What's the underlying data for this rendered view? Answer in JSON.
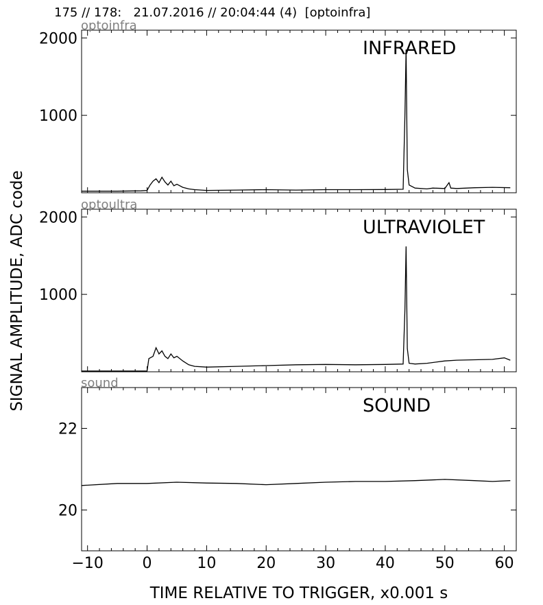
{
  "header": {
    "text": "175 // 178:   21.07.2016 // 20:04:44 (4)  [optoinfra]"
  },
  "ylabel": "SIGNAL AMPLITUDE,  ADC code",
  "xlabel": "TIME RELATIVE TO TRIGGER,   x0.001 s",
  "chart_data": [
    {
      "type": "line",
      "channel": "optoinfra",
      "title": "INFRARED",
      "xlim": [
        -11,
        62
      ],
      "ylim": [
        0,
        2100
      ],
      "yticks": [
        1000,
        2000
      ],
      "xticks": [
        -10,
        0,
        10,
        20,
        30,
        40,
        50,
        60
      ],
      "grid": false,
      "x": [
        -11,
        -5,
        -1,
        0,
        0.5,
        1,
        1.5,
        2,
        2.5,
        3,
        3.5,
        4,
        4.5,
        5,
        6,
        7,
        8,
        10,
        15,
        20,
        25,
        30,
        35,
        40,
        43,
        43.3,
        43.5,
        43.7,
        44,
        45,
        47,
        48,
        50,
        50.7,
        51,
        52,
        55,
        58,
        61
      ],
      "y": [
        20,
        20,
        25,
        30,
        100,
        150,
        180,
        130,
        200,
        140,
        100,
        150,
        90,
        110,
        70,
        50,
        40,
        30,
        35,
        40,
        35,
        40,
        40,
        42,
        45,
        1000,
        1850,
        300,
        100,
        60,
        50,
        60,
        55,
        130,
        60,
        55,
        65,
        70,
        65
      ]
    },
    {
      "type": "line",
      "channel": "optoultra",
      "title": "ULTRAVIOLET",
      "xlim": [
        -11,
        62
      ],
      "ylim": [
        0,
        2100
      ],
      "yticks": [
        1000,
        2000
      ],
      "xticks": [
        -10,
        0,
        10,
        20,
        30,
        40,
        50,
        60
      ],
      "grid": false,
      "x": [
        -11,
        -5,
        -1,
        0,
        0.3,
        1,
        1.5,
        2,
        2.5,
        3,
        3.5,
        4,
        4.5,
        5,
        6,
        7,
        8,
        10,
        15,
        20,
        25,
        30,
        35,
        40,
        43,
        43.3,
        43.5,
        43.7,
        44,
        45,
        47,
        50,
        52,
        55,
        58,
        60,
        61
      ],
      "y": [
        10,
        10,
        10,
        10,
        170,
        200,
        310,
        230,
        270,
        200,
        170,
        230,
        180,
        200,
        140,
        90,
        70,
        60,
        70,
        80,
        90,
        95,
        90,
        95,
        100,
        800,
        1620,
        300,
        110,
        100,
        110,
        140,
        150,
        155,
        160,
        180,
        150
      ]
    },
    {
      "type": "line",
      "channel": "sound",
      "title": "SOUND",
      "xlim": [
        -11,
        62
      ],
      "ylim": [
        19,
        23
      ],
      "yticks": [
        20,
        22
      ],
      "xticks": [
        -10,
        0,
        10,
        20,
        30,
        40,
        50,
        60
      ],
      "grid": false,
      "x": [
        -11,
        -5,
        0,
        5,
        10,
        15,
        20,
        25,
        30,
        35,
        40,
        45,
        50,
        55,
        58,
        61
      ],
      "y": [
        20.6,
        20.65,
        20.65,
        20.68,
        20.66,
        20.65,
        20.62,
        20.65,
        20.68,
        20.7,
        20.7,
        20.72,
        20.75,
        20.72,
        20.7,
        20.72
      ]
    }
  ]
}
